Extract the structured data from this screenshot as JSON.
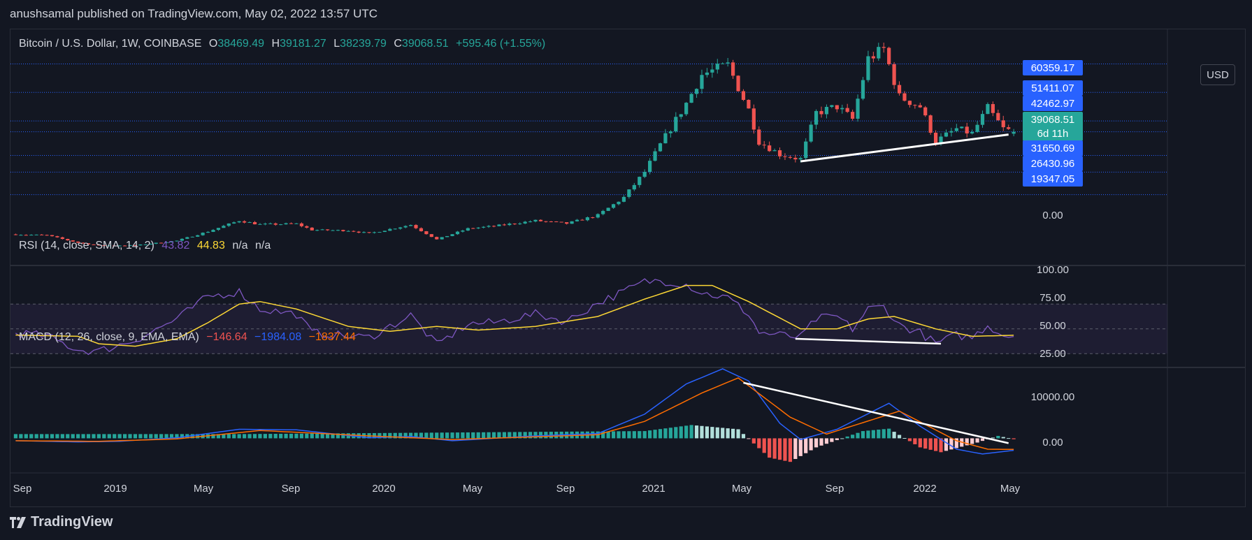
{
  "header": {
    "publisher_line": "anushsamal published on TradingView.com, May 02, 2022 13:57 UTC"
  },
  "footer": {
    "logo_text": "TradingView"
  },
  "toolbar": {
    "currency_button": "USD"
  },
  "price_pane": {
    "symbol": "Bitcoin / U.S. Dollar, 1W, COINBASE",
    "open_label": "O",
    "open": "38469.49",
    "high_label": "H",
    "high": "39181.27",
    "low_label": "L",
    "low": "38239.79",
    "close_label": "C",
    "close": "39068.51",
    "change": "+595.46 (+1.55%)",
    "axis_labels": [
      {
        "value": "60359.17",
        "color": "#2962ff"
      },
      {
        "value": "51411.07",
        "color": "#2962ff"
      },
      {
        "value": "42462.97",
        "color": "#2962ff"
      },
      {
        "value": "39068.51",
        "color": "#26a69a",
        "sub": "6d 11h"
      },
      {
        "value": "31650.69",
        "color": "#2962ff"
      },
      {
        "value": "26430.96",
        "color": "#2962ff"
      },
      {
        "value": "19347.05",
        "color": "#2962ff"
      },
      {
        "value": "0.00",
        "color": ""
      }
    ]
  },
  "rsi_pane": {
    "title": "RSI (14, close, SMA, 14, 2)",
    "rsi_value": "43.82",
    "sma_value": "44.83",
    "na1": "n/a",
    "na2": "n/a",
    "ticks": [
      "100.00",
      "75.00",
      "50.00",
      "25.00"
    ]
  },
  "macd_pane": {
    "title": "MACD (12, 26, close, 9, EMA, EMA)",
    "hist_value": "−146.64",
    "macd_value": "−1984.08",
    "signal_value": "−1837.44",
    "ticks": [
      "10000.00",
      "0.00"
    ]
  },
  "time_axis": {
    "labels": [
      "Sep",
      "2019",
      "May",
      "Sep",
      "2020",
      "May",
      "Sep",
      "2021",
      "May",
      "Sep",
      "2022",
      "May"
    ]
  },
  "colors": {
    "up": "#26a69a",
    "down": "#ef5350",
    "rsi": "#7e57c2",
    "rsi_ma": "#fdd835",
    "macd": "#2962ff",
    "signal": "#ff6d00",
    "level_line": "#2962ff",
    "trendline": "#ffffff"
  },
  "chart_data": [
    {
      "type": "candlestick",
      "name": "Bitcoin / U.S. Dollar, 1W, COINBASE",
      "x_range": [
        "2018-08-20",
        "2022-05-02"
      ],
      "ylim": [
        0,
        69000
      ],
      "horizontal_levels": [
        60359.17,
        51411.07,
        42462.97,
        39068.51,
        31650.69,
        26430.96,
        19347.05
      ],
      "close_path": [
        {
          "x": "2018-08-27",
          "y": 6900
        },
        {
          "x": "2018-10-08",
          "y": 6600
        },
        {
          "x": "2018-11-19",
          "y": 4300
        },
        {
          "x": "2018-12-17",
          "y": 3400
        },
        {
          "x": "2019-02-04",
          "y": 3450
        },
        {
          "x": "2019-04-01",
          "y": 4900
        },
        {
          "x": "2019-05-13",
          "y": 7800
        },
        {
          "x": "2019-06-24",
          "y": 11200
        },
        {
          "x": "2019-07-22",
          "y": 10000
        },
        {
          "x": "2019-09-09",
          "y": 10200
        },
        {
          "x": "2019-09-30",
          "y": 8300
        },
        {
          "x": "2019-11-18",
          "y": 8100
        },
        {
          "x": "2019-12-16",
          "y": 7200
        },
        {
          "x": "2020-02-10",
          "y": 9900
        },
        {
          "x": "2020-03-16",
          "y": 5300
        },
        {
          "x": "2020-04-27",
          "y": 8700
        },
        {
          "x": "2020-06-01",
          "y": 9500
        },
        {
          "x": "2020-07-27",
          "y": 11200
        },
        {
          "x": "2020-09-07",
          "y": 10300
        },
        {
          "x": "2020-10-19",
          "y": 12900
        },
        {
          "x": "2020-11-23",
          "y": 18500
        },
        {
          "x": "2020-12-21",
          "y": 26500
        },
        {
          "x": "2021-01-11",
          "y": 35000
        },
        {
          "x": "2021-02-15",
          "y": 48000
        },
        {
          "x": "2021-03-08",
          "y": 57000
        },
        {
          "x": "2021-04-12",
          "y": 60000
        },
        {
          "x": "2021-05-10",
          "y": 46000
        },
        {
          "x": "2021-05-24",
          "y": 36000
        },
        {
          "x": "2021-06-21",
          "y": 32000
        },
        {
          "x": "2021-07-19",
          "y": 30500
        },
        {
          "x": "2021-08-09",
          "y": 45000
        },
        {
          "x": "2021-09-06",
          "y": 47000
        },
        {
          "x": "2021-09-27",
          "y": 43000
        },
        {
          "x": "2021-10-18",
          "y": 62000
        },
        {
          "x": "2021-11-08",
          "y": 65000
        },
        {
          "x": "2021-11-29",
          "y": 50000
        },
        {
          "x": "2021-12-27",
          "y": 47000
        },
        {
          "x": "2022-01-17",
          "y": 36000
        },
        {
          "x": "2022-02-14",
          "y": 40000
        },
        {
          "x": "2022-03-07",
          "y": 38500
        },
        {
          "x": "2022-03-28",
          "y": 46500
        },
        {
          "x": "2022-04-18",
          "y": 40000
        },
        {
          "x": "2022-05-02",
          "y": 39068.51
        }
      ],
      "trendline": [
        {
          "x": "2021-07-19",
          "y": 29800
        },
        {
          "x": "2022-04-25",
          "y": 38200
        }
      ]
    },
    {
      "type": "line",
      "name": "RSI (14, close, SMA, 14, 2)",
      "ylim": [
        20,
        100
      ],
      "bands": [
        30,
        50,
        70
      ],
      "series": [
        {
          "name": "RSI",
          "values": [
            {
              "x": "2018-08-27",
              "y": 47
            },
            {
              "x": "2018-10-08",
              "y": 44
            },
            {
              "x": "2018-11-19",
              "y": 33
            },
            {
              "x": "2018-12-17",
              "y": 32
            },
            {
              "x": "2019-02-04",
              "y": 41
            },
            {
              "x": "2019-04-01",
              "y": 58
            },
            {
              "x": "2019-05-13",
              "y": 76
            },
            {
              "x": "2019-06-24",
              "y": 80
            },
            {
              "x": "2019-07-22",
              "y": 66
            },
            {
              "x": "2019-09-09",
              "y": 62
            },
            {
              "x": "2019-09-30",
              "y": 47
            },
            {
              "x": "2019-11-18",
              "y": 44
            },
            {
              "x": "2019-12-16",
              "y": 43
            },
            {
              "x": "2020-02-10",
              "y": 61
            },
            {
              "x": "2020-03-16",
              "y": 37
            },
            {
              "x": "2020-04-27",
              "y": 54
            },
            {
              "x": "2020-06-01",
              "y": 55
            },
            {
              "x": "2020-07-27",
              "y": 62
            },
            {
              "x": "2020-09-07",
              "y": 56
            },
            {
              "x": "2020-10-19",
              "y": 71
            },
            {
              "x": "2020-11-23",
              "y": 80
            },
            {
              "x": "2020-12-21",
              "y": 88
            },
            {
              "x": "2021-01-11",
              "y": 89
            },
            {
              "x": "2021-02-15",
              "y": 86
            },
            {
              "x": "2021-03-08",
              "y": 79
            },
            {
              "x": "2021-04-12",
              "y": 75
            },
            {
              "x": "2021-05-10",
              "y": 62
            },
            {
              "x": "2021-05-24",
              "y": 47
            },
            {
              "x": "2021-06-21",
              "y": 45
            },
            {
              "x": "2021-07-19",
              "y": 43
            },
            {
              "x": "2021-08-09",
              "y": 58
            },
            {
              "x": "2021-09-06",
              "y": 60
            },
            {
              "x": "2021-09-27",
              "y": 50
            },
            {
              "x": "2021-10-18",
              "y": 66
            },
            {
              "x": "2021-11-08",
              "y": 68
            },
            {
              "x": "2021-11-29",
              "y": 53
            },
            {
              "x": "2021-12-27",
              "y": 47
            },
            {
              "x": "2022-01-17",
              "y": 38
            },
            {
              "x": "2022-02-14",
              "y": 45
            },
            {
              "x": "2022-03-07",
              "y": 43
            },
            {
              "x": "2022-03-28",
              "y": 53
            },
            {
              "x": "2022-04-18",
              "y": 45
            },
            {
              "x": "2022-05-02",
              "y": 43.82
            }
          ]
        },
        {
          "name": "SMA",
          "values": [
            {
              "x": "2018-08-27",
              "y": 45
            },
            {
              "x": "2018-11-19",
              "y": 44
            },
            {
              "x": "2018-12-17",
              "y": 38
            },
            {
              "x": "2019-02-04",
              "y": 36
            },
            {
              "x": "2019-04-01",
              "y": 42
            },
            {
              "x": "2019-05-13",
              "y": 55
            },
            {
              "x": "2019-06-24",
              "y": 70
            },
            {
              "x": "2019-07-22",
              "y": 72
            },
            {
              "x": "2019-09-09",
              "y": 66
            },
            {
              "x": "2019-11-18",
              "y": 52
            },
            {
              "x": "2020-01-13",
              "y": 48
            },
            {
              "x": "2020-03-16",
              "y": 52
            },
            {
              "x": "2020-05-11",
              "y": 49
            },
            {
              "x": "2020-07-27",
              "y": 52
            },
            {
              "x": "2020-10-19",
              "y": 60
            },
            {
              "x": "2020-12-21",
              "y": 74
            },
            {
              "x": "2021-02-15",
              "y": 85
            },
            {
              "x": "2021-03-22",
              "y": 85
            },
            {
              "x": "2021-05-10",
              "y": 72
            },
            {
              "x": "2021-07-19",
              "y": 50
            },
            {
              "x": "2021-09-06",
              "y": 50
            },
            {
              "x": "2021-10-18",
              "y": 58
            },
            {
              "x": "2021-11-22",
              "y": 60
            },
            {
              "x": "2022-01-17",
              "y": 50
            },
            {
              "x": "2022-03-07",
              "y": 44
            },
            {
              "x": "2022-05-02",
              "y": 44.83
            }
          ]
        }
      ],
      "trendline": [
        {
          "x": "2021-07-12",
          "y": 42
        },
        {
          "x": "2022-01-24",
          "y": 38
        }
      ]
    },
    {
      "type": "bar+line",
      "name": "MACD (12, 26, close, 9, EMA, EMA)",
      "ylim": [
        -5500,
        11500
      ],
      "series": [
        {
          "name": "MACD",
          "values": [
            {
              "x": "2018-08-27",
              "y": -400
            },
            {
              "x": "2018-11-19",
              "y": -600
            },
            {
              "x": "2019-01-14",
              "y": -500
            },
            {
              "x": "2019-04-01",
              "y": 100
            },
            {
              "x": "2019-06-24",
              "y": 1500
            },
            {
              "x": "2019-09-09",
              "y": 1400
            },
            {
              "x": "2019-12-16",
              "y": 100
            },
            {
              "x": "2020-02-10",
              "y": 300
            },
            {
              "x": "2020-04-06",
              "y": -400
            },
            {
              "x": "2020-07-27",
              "y": 400
            },
            {
              "x": "2020-10-19",
              "y": 800
            },
            {
              "x": "2020-12-21",
              "y": 4000
            },
            {
              "x": "2021-02-15",
              "y": 9000
            },
            {
              "x": "2021-04-05",
              "y": 11500
            },
            {
              "x": "2021-05-10",
              "y": 9500
            },
            {
              "x": "2021-06-21",
              "y": 2500
            },
            {
              "x": "2021-07-19",
              "y": -200
            },
            {
              "x": "2021-09-06",
              "y": 1500
            },
            {
              "x": "2021-11-15",
              "y": 5800
            },
            {
              "x": "2021-12-27",
              "y": 2000
            },
            {
              "x": "2022-02-14",
              "y": -1800
            },
            {
              "x": "2022-03-21",
              "y": -2600
            },
            {
              "x": "2022-05-02",
              "y": -1984.08
            }
          ]
        },
        {
          "name": "Signal",
          "values": [
            {
              "x": "2018-08-27",
              "y": -400
            },
            {
              "x": "2018-12-17",
              "y": -500
            },
            {
              "x": "2019-04-01",
              "y": -100
            },
            {
              "x": "2019-07-22",
              "y": 1300
            },
            {
              "x": "2019-12-16",
              "y": 400
            },
            {
              "x": "2020-04-06",
              "y": -200
            },
            {
              "x": "2020-10-19",
              "y": 600
            },
            {
              "x": "2020-12-21",
              "y": 2800
            },
            {
              "x": "2021-03-08",
              "y": 7500
            },
            {
              "x": "2021-04-26",
              "y": 10000
            },
            {
              "x": "2021-07-05",
              "y": 3500
            },
            {
              "x": "2021-08-23",
              "y": 700
            },
            {
              "x": "2021-11-29",
              "y": 4500
            },
            {
              "x": "2022-02-14",
              "y": -400
            },
            {
              "x": "2022-03-28",
              "y": -1800
            },
            {
              "x": "2022-05-02",
              "y": -1837.44
            }
          ]
        }
      ],
      "histogram": [
        {
          "x": "2019-06-24",
          "y": 700
        },
        {
          "x": "2020-12-21",
          "y": 1200
        },
        {
          "x": "2021-02-22",
          "y": 2200
        },
        {
          "x": "2021-04-26",
          "y": 1500
        },
        {
          "x": "2021-06-07",
          "y": -3200
        },
        {
          "x": "2021-07-05",
          "y": -3900
        },
        {
          "x": "2021-08-09",
          "y": -1500
        },
        {
          "x": "2021-10-11",
          "y": 1200
        },
        {
          "x": "2021-11-15",
          "y": 1600
        },
        {
          "x": "2021-12-27",
          "y": -1500
        },
        {
          "x": "2022-01-24",
          "y": -2300
        },
        {
          "x": "2022-03-14",
          "y": -700
        },
        {
          "x": "2022-04-11",
          "y": 400
        },
        {
          "x": "2022-05-02",
          "y": -146.64
        }
      ],
      "trendline": [
        {
          "x": "2021-05-03",
          "y": 9200
        },
        {
          "x": "2022-04-25",
          "y": -800
        }
      ]
    }
  ]
}
